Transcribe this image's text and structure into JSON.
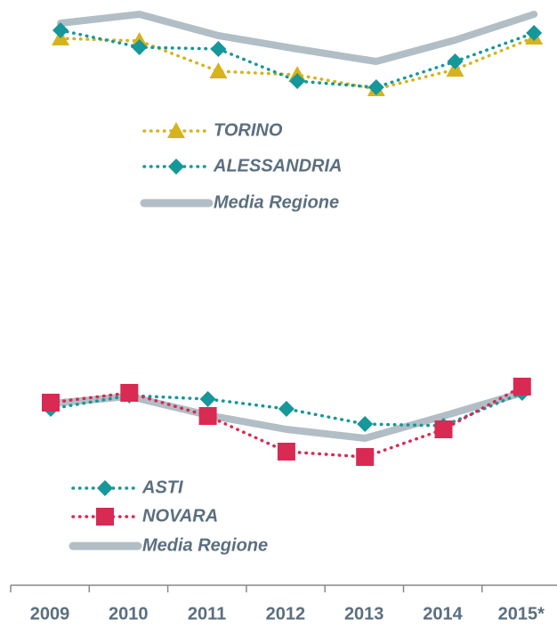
{
  "chart_data": [
    {
      "type": "line",
      "ylim": [
        0,
        110
      ],
      "series": [
        {
          "name": "TORINO",
          "color": "#d6b31c",
          "marker": "triangle",
          "style": "dotted",
          "values": [
            67,
            64,
            30,
            26,
            10,
            32,
            68
          ]
        },
        {
          "name": "ALESSANDRIA",
          "color": "#16979a",
          "marker": "diamond",
          "style": "dotted",
          "values": [
            76,
            57,
            55,
            19,
            12,
            41,
            73
          ]
        },
        {
          "name": "Media Regione",
          "color": "#b2bec6",
          "marker": "none",
          "style": "solid",
          "values": [
            84,
            94,
            70,
            55,
            41,
            65,
            94
          ]
        }
      ]
    },
    {
      "type": "line",
      "ylim": [
        0,
        110
      ],
      "categories": [
        "2009",
        "2010",
        "2011",
        "2012",
        "2013",
        "2014",
        "2015*"
      ],
      "series": [
        {
          "name": "ASTI",
          "color": "#16979a",
          "marker": "diamond",
          "style": "dotted",
          "values": [
            71,
            86,
            82,
            71,
            54,
            52,
            89
          ]
        },
        {
          "name": "NOVARA",
          "color": "#d82a52",
          "marker": "square",
          "style": "dotted",
          "values": [
            78,
            89,
            63,
            23,
            17,
            48,
            96
          ]
        },
        {
          "name": "Media Regione",
          "color": "#b2bec6",
          "marker": "none",
          "style": "solid",
          "values": [
            77,
            85,
            64,
            48,
            38,
            63,
            89
          ]
        }
      ]
    }
  ]
}
